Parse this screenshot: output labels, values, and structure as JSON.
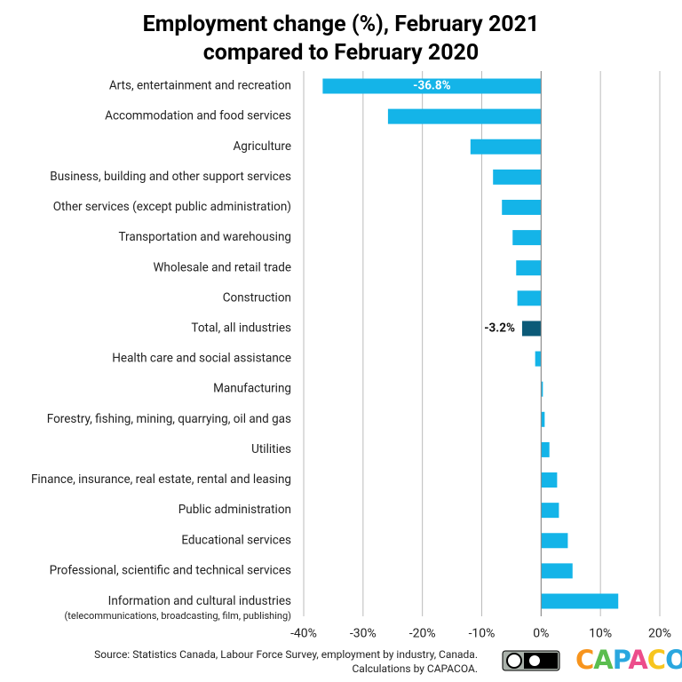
{
  "chart_data": {
    "type": "barh",
    "title": "Employment change (%), February 2021\ncompared to February 2020",
    "categories": [
      "Arts, entertainment and recreation",
      "Accommodation and food services",
      "Agriculture",
      "Business, building and other support services",
      "Other services (except public administration)",
      "Transportation and warehousing",
      "Wholesale and retail trade",
      "Construction",
      "Total, all industries",
      "Health care and social assistance",
      "Manufacturing",
      "Forestry, fishing, mining, quarrying, oil and gas",
      "Utilities",
      "Finance, insurance, real estate, rental and leasing",
      "Public administration",
      "Educational services",
      "Professional, scientific and technical services",
      "Information and cultural industries\n(telecommunications, broadcasting, film, publishing)"
    ],
    "values": [
      -36.8,
      -25.8,
      -11.9,
      -8.1,
      -6.6,
      -4.8,
      -4.2,
      -4.0,
      -3.2,
      -1.0,
      0.3,
      0.6,
      1.4,
      2.7,
      3.0,
      4.5,
      5.3,
      13.0
    ],
    "value_labels": [
      "-36.8%",
      null,
      null,
      null,
      null,
      null,
      null,
      null,
      "-3.2%",
      null,
      null,
      null,
      null,
      null,
      null,
      null,
      null,
      null
    ],
    "colors": [
      "#14b4e8",
      "#14b4e8",
      "#14b4e8",
      "#14b4e8",
      "#14b4e8",
      "#14b4e8",
      "#14b4e8",
      "#14b4e8",
      "#0b5a78",
      "#14b4e8",
      "#14b4e8",
      "#14b4e8",
      "#14b4e8",
      "#14b4e8",
      "#14b4e8",
      "#14b4e8",
      "#14b4e8",
      "#14b4e8"
    ],
    "xlim": [
      -40,
      20
    ],
    "xticks": [
      {
        "value": -40,
        "label": "-40%"
      },
      {
        "value": -30,
        "label": "-30%"
      },
      {
        "value": -20,
        "label": "-20%"
      },
      {
        "value": -10,
        "label": "-10%"
      },
      {
        "value": 0,
        "label": "0%"
      },
      {
        "value": 10,
        "label": "10%"
      },
      {
        "value": 20,
        "label": "20%"
      }
    ],
    "grid": true,
    "source": "Source: Statistics Canada, Labour Force Survey, employment by industry, Canada.\nCalculations by CAPACOA.",
    "logo": "CAPACOA"
  }
}
